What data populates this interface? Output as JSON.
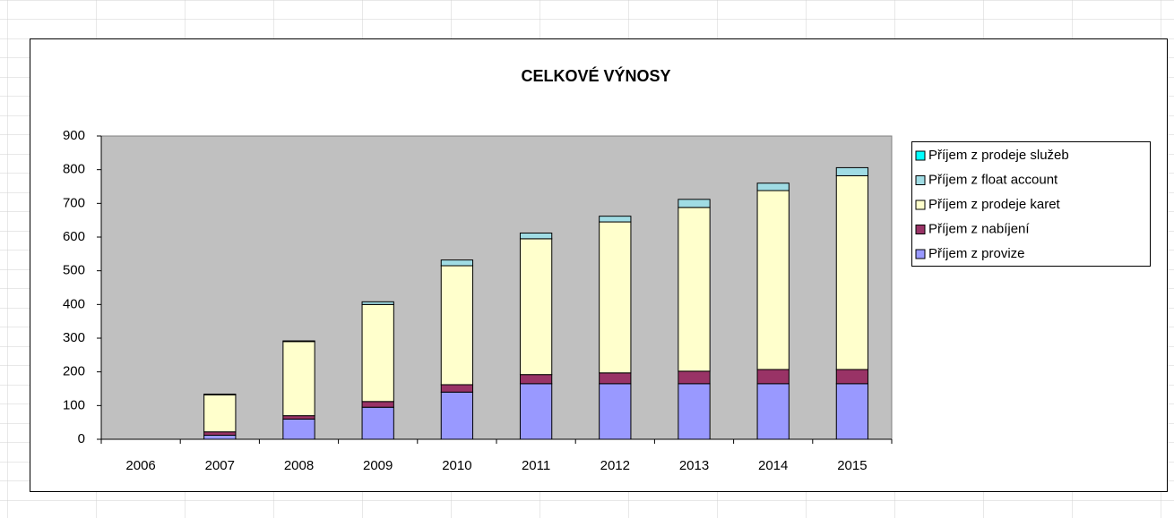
{
  "chart_data": {
    "type": "bar",
    "stacked": true,
    "title": "CELKOVÉ VÝNOSY",
    "categories": [
      "2006",
      "2007",
      "2008",
      "2009",
      "2010",
      "2011",
      "2012",
      "2013",
      "2014",
      "2015"
    ],
    "series": [
      {
        "name": "Příjem z provize",
        "color": "#9999ff",
        "values": [
          0,
          12,
          60,
          95,
          140,
          165,
          165,
          165,
          165,
          165
        ]
      },
      {
        "name": "Příjem z nabíjení",
        "color": "#993366",
        "values": [
          0,
          10,
          10,
          17,
          22,
          27,
          32,
          37,
          42,
          42
        ]
      },
      {
        "name": "Příjem z prodeje karet",
        "color": "#ffffcc",
        "values": [
          0,
          110,
          220,
          288,
          353,
          403,
          448,
          486,
          531,
          575
        ]
      },
      {
        "name": "Příjem z float account",
        "color": "#a0dce4",
        "values": [
          0,
          2,
          2,
          8,
          17,
          17,
          17,
          24,
          22,
          24
        ]
      },
      {
        "name": "Příjem z prodeje služeb",
        "color": "#00ffff",
        "values": [
          0,
          0,
          0,
          0,
          0,
          0,
          0,
          0,
          0,
          0
        ]
      }
    ],
    "ylim": [
      0,
      900
    ],
    "yticks": [
      0,
      100,
      200,
      300,
      400,
      500,
      600,
      700,
      800,
      900
    ],
    "legend": "right"
  }
}
